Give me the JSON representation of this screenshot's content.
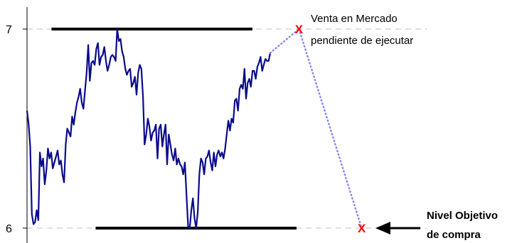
{
  "colors": {
    "series": "#0a0a8c",
    "projection": "#8a8af0",
    "marker": "#ff0000",
    "grid": "#c0c0c0",
    "level_line": "#000000",
    "axis": "#000000"
  },
  "chart_data": {
    "type": "line",
    "ylim": [
      6.0,
      7.0
    ],
    "yticks": [
      {
        "value": 7,
        "label": "7"
      },
      {
        "value": 6,
        "label": "6"
      }
    ],
    "grid": "horizontal-dashed",
    "series": [
      {
        "values": [
          6.59,
          6.52,
          6.41,
          6.07,
          6.02,
          6.03,
          6.09,
          6.04,
          6.38,
          6.31,
          6.35,
          6.22,
          6.29,
          6.4,
          6.35,
          6.38,
          6.3,
          6.33,
          6.36,
          6.39,
          6.32,
          6.34,
          6.27,
          6.23,
          6.42,
          6.5,
          6.48,
          6.46,
          6.56,
          6.52,
          6.58,
          6.63,
          6.66,
          6.7,
          6.63,
          6.6,
          6.69,
          6.78,
          6.92,
          6.74,
          6.83,
          6.84,
          6.82,
          6.9,
          6.93,
          6.82,
          6.86,
          6.87,
          6.91,
          6.84,
          6.79,
          6.82,
          6.86,
          6.87,
          6.86,
          6.84,
          7.0,
          6.94,
          6.95,
          6.89,
          6.86,
          6.8,
          6.77,
          6.79,
          6.8,
          6.71,
          6.73,
          6.76,
          6.67,
          6.78,
          6.82,
          6.8,
          6.66,
          6.42,
          6.47,
          6.55,
          6.51,
          6.44,
          6.48,
          6.49,
          6.52,
          6.35,
          6.5,
          6.52,
          6.41,
          6.47,
          6.52,
          6.32,
          6.47,
          6.42,
          6.37,
          6.34,
          6.4,
          6.32,
          6.35,
          6.32,
          6.31,
          6.27,
          6.33,
          6.17,
          6.01,
          6.0,
          6.09,
          6.15,
          6.05,
          6.0,
          6.08,
          6.27,
          6.35,
          6.33,
          6.27,
          6.35,
          6.36,
          6.39,
          6.33,
          6.29,
          6.38,
          6.31,
          6.37,
          6.39,
          6.36,
          6.38,
          6.35,
          6.4,
          6.47,
          6.54,
          6.49,
          6.55,
          6.53,
          6.64,
          6.65,
          6.59,
          6.7,
          6.72,
          6.7,
          6.8,
          6.65,
          6.73,
          6.75,
          6.71,
          6.79,
          6.79,
          6.75,
          6.81,
          6.83,
          6.86,
          6.79,
          6.82,
          6.85,
          6.84,
          6.84,
          6.88
        ]
      }
    ],
    "levels": [
      {
        "name": "Venta",
        "value": 7.0,
        "from": 0.05,
        "to": 0.46
      },
      {
        "name": "Nivel Objetivo",
        "value": 6.0,
        "from": 0.14,
        "to": 0.55
      }
    ],
    "projection": [
      {
        "from_index": 150,
        "from_value": 6.88,
        "at": 0.555,
        "value": 7.0
      },
      {
        "at": 0.555,
        "value": 7.0,
        "at_end": 0.683,
        "value_end": 6.0
      }
    ],
    "markers": [
      {
        "at": 0.555,
        "value": 7.0,
        "label": "X"
      },
      {
        "at": 0.683,
        "value": 6.0,
        "label": "X"
      }
    ],
    "annotations": {
      "sell": [
        "Venta en Mercado",
        "pendiente de ejecutar"
      ],
      "target": [
        "Nivel Objetivo",
        "de compra"
      ]
    }
  }
}
